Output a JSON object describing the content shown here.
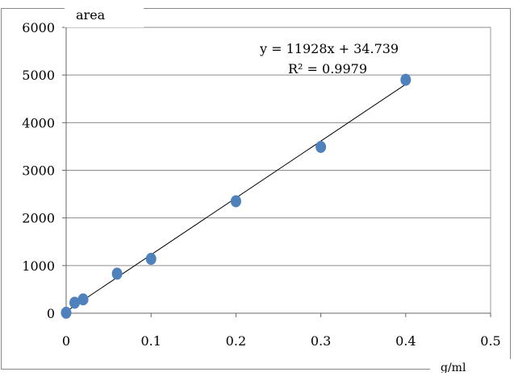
{
  "chart_data": {
    "type": "scatter",
    "ylabel": "area",
    "xlabel": "g/ml",
    "xlim": [
      0,
      0.5
    ],
    "ylim": [
      0,
      6000
    ],
    "x_ticks": [
      0,
      0.1,
      0.2,
      0.3,
      0.4,
      0.5
    ],
    "y_ticks": [
      0,
      1000,
      2000,
      3000,
      4000,
      5000,
      6000
    ],
    "x_tick_labels": [
      "0",
      "0.1",
      "0.2",
      "0.3",
      "0.4",
      "0.5"
    ],
    "y_tick_labels": [
      "0",
      "1000",
      "2000",
      "3000",
      "4000",
      "5000",
      "6000"
    ],
    "grid": "horizontal",
    "series": [
      {
        "x": [
          0,
          0.01,
          0.02,
          0.06,
          0.1,
          0.2,
          0.3,
          0.4
        ],
        "y": [
          10,
          220,
          290,
          830,
          1140,
          2350,
          3490,
          4900
        ],
        "color": "#4F81BD"
      }
    ],
    "trendline": {
      "type": "linear",
      "slope": 11928,
      "intercept": 34.739,
      "x_range": [
        0,
        0.4
      ],
      "color": "#000000"
    },
    "equation_label": "y = 11928x + 34.739",
    "r2_label": "R² = 0.9979"
  }
}
